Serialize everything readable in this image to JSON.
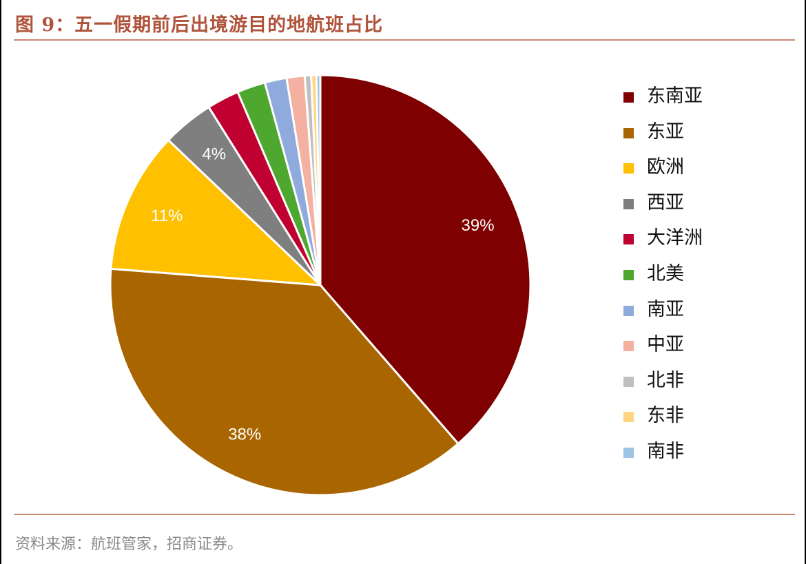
{
  "header": {
    "title": "图 9：五一假期前后出境游目的地航班占比"
  },
  "footer": {
    "source": "资料来源：航班管家，招商证券。"
  },
  "chart_data": {
    "type": "pie",
    "title": "图 9：五一假期前后出境游目的地航班占比",
    "legend_position": "right",
    "slices": [
      {
        "label": "东南亚",
        "value": 39,
        "display": "39%",
        "color": "#7f0000"
      },
      {
        "label": "东亚",
        "value": 38,
        "display": "38%",
        "color": "#a96500"
      },
      {
        "label": "欧洲",
        "value": 11,
        "display": "11%",
        "color": "#ffc000"
      },
      {
        "label": "西亚",
        "value": 4,
        "display": "4%",
        "color": "#7f7f7f"
      },
      {
        "label": "大洋洲",
        "value": 2.5,
        "display": "",
        "color": "#c00030"
      },
      {
        "label": "北美",
        "value": 2.2,
        "display": "",
        "color": "#4ea72e"
      },
      {
        "label": "南亚",
        "value": 1.7,
        "display": "",
        "color": "#8faadc"
      },
      {
        "label": "中亚",
        "value": 1.4,
        "display": "",
        "color": "#f4b0a0"
      },
      {
        "label": "北非",
        "value": 0.5,
        "display": "",
        "color": "#bfbfbf"
      },
      {
        "label": "东非",
        "value": 0.4,
        "display": "",
        "color": "#ffd580"
      },
      {
        "label": "南非",
        "value": 0.3,
        "display": "",
        "color": "#9dc3e6"
      }
    ]
  }
}
